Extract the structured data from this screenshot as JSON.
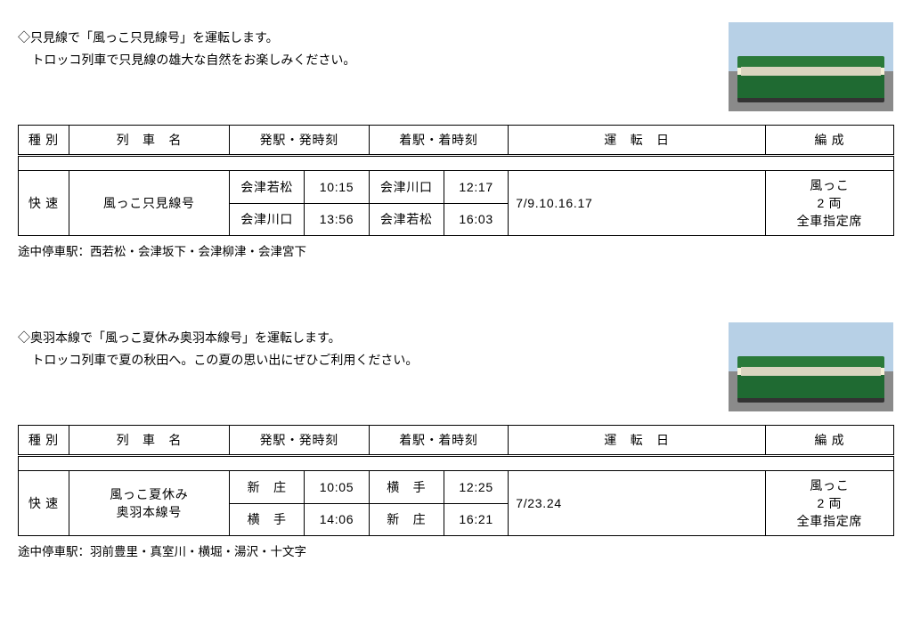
{
  "headers": {
    "type": "種 別",
    "name": "列　車　名",
    "dep": "発駅・発時刻",
    "arr": "着駅・着時刻",
    "days": "運　転　日",
    "form": "編 成"
  },
  "section1": {
    "line1": "◇只見線で「風っこ只見線号」を運転します。",
    "line2": "トロッコ列車で只見線の雄大な自然をお楽しみください。",
    "type": "快 速",
    "name": "風っこ只見線号",
    "r1_dsta": "会津若松",
    "r1_dtime": "10:15",
    "r1_asta": "会津川口",
    "r1_atime": "12:17",
    "r2_dsta": "会津川口",
    "r2_dtime": "13:56",
    "r2_asta": "会津若松",
    "r2_atime": "16:03",
    "days": "7/9.10.16.17",
    "form1": "風っこ",
    "form2": "2 両",
    "form3": "全車指定席",
    "footnote": "途中停車駅：西若松・会津坂下・会津柳津・会津宮下"
  },
  "section2": {
    "line1": "◇奥羽本線で「風っこ夏休み奥羽本線号」を運転します。",
    "line2": "トロッコ列車で夏の秋田へ。この夏の思い出にぜひご利用ください。",
    "type": "快 速",
    "name1": "風っこ夏休み",
    "name2": "奥羽本線号",
    "r1_dsta": "新　庄",
    "r1_dtime": "10:05",
    "r1_asta": "横　手",
    "r1_atime": "12:25",
    "r2_dsta": "横　手",
    "r2_dtime": "14:06",
    "r2_asta": "新　庄",
    "r2_atime": "16:21",
    "days": "7/23.24",
    "form1": "風っこ",
    "form2": "2 両",
    "form3": "全車指定席",
    "footnote": "途中停車駅：羽前豊里・真室川・横堀・湯沢・十文字"
  }
}
